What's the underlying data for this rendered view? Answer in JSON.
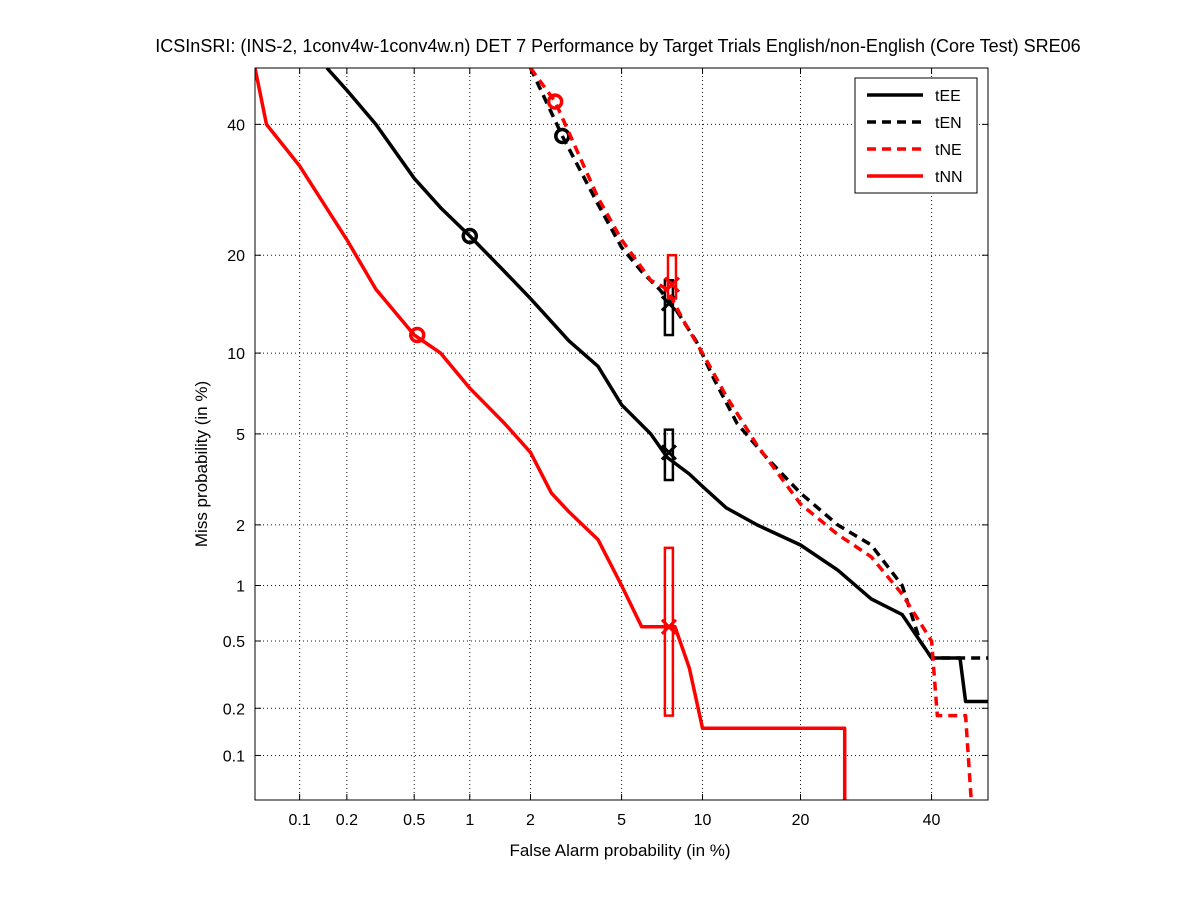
{
  "chart_data": {
    "type": "line",
    "title": "ICSInSRI: (INS-2, 1conv4w-1conv4w.n) DET 7 Performance by Target Trials English/non-English (Core Test) SRE06",
    "xlabel": "False Alarm probability (in %)",
    "ylabel": "Miss probability (in %)",
    "x_scale": "probit",
    "y_scale": "probit",
    "xlim": [
      0.05,
      50
    ],
    "ylim": [
      0.05,
      50
    ],
    "grid": true,
    "legend_position": "top-right",
    "xticks": [
      {
        "value": 0.1,
        "label": "0.1"
      },
      {
        "value": 0.2,
        "label": "0.2"
      },
      {
        "value": 0.5,
        "label": "0.5"
      },
      {
        "value": 1,
        "label": "1"
      },
      {
        "value": 2,
        "label": "2"
      },
      {
        "value": 5,
        "label": "5"
      },
      {
        "value": 10,
        "label": "10"
      },
      {
        "value": 20,
        "label": "20"
      },
      {
        "value": 40,
        "label": "40"
      }
    ],
    "yticks": [
      {
        "value": 0.1,
        "label": "0.1"
      },
      {
        "value": 0.2,
        "label": "0.2"
      },
      {
        "value": 0.5,
        "label": "0.5"
      },
      {
        "value": 1,
        "label": "1"
      },
      {
        "value": 2,
        "label": "2"
      },
      {
        "value": 5,
        "label": "5"
      },
      {
        "value": 10,
        "label": "10"
      },
      {
        "value": 20,
        "label": "20"
      },
      {
        "value": 40,
        "label": "40"
      }
    ],
    "series": [
      {
        "name": "tEE",
        "color": "#000000",
        "line_style": "solid",
        "points": [
          [
            0.15,
            50
          ],
          [
            0.2,
            46
          ],
          [
            0.3,
            40
          ],
          [
            0.5,
            31
          ],
          [
            0.7,
            26.5
          ],
          [
            1.0,
            22.5
          ],
          [
            1.5,
            18
          ],
          [
            2.0,
            15
          ],
          [
            3.0,
            11
          ],
          [
            4.0,
            9
          ],
          [
            5.0,
            6.5
          ],
          [
            6.5,
            5
          ],
          [
            7.5,
            4
          ],
          [
            9.0,
            3.4
          ],
          [
            10.0,
            3.0
          ],
          [
            12.0,
            2.4
          ],
          [
            15.0,
            2.0
          ],
          [
            20.0,
            1.6
          ],
          [
            25.0,
            1.2
          ],
          [
            30.0,
            0.85
          ],
          [
            35.0,
            0.7
          ],
          [
            40.0,
            0.4
          ],
          [
            45.0,
            0.4
          ],
          [
            46.0,
            0.22
          ],
          [
            50.0,
            0.22
          ]
        ],
        "min_dcf": [
          1.0,
          22.5
        ],
        "actual_dcf": [
          7.6,
          4.2
        ],
        "actual_dcf_interval": [
          3.2,
          5.2
        ]
      },
      {
        "name": "tEN",
        "color": "#000000",
        "line_style": "dashed",
        "points": [
          [
            2.0,
            50
          ],
          [
            2.8,
            38
          ],
          [
            4.0,
            27
          ],
          [
            5.0,
            21
          ],
          [
            6.0,
            18
          ],
          [
            7.0,
            16
          ],
          [
            8.0,
            14
          ],
          [
            9.5,
            11
          ],
          [
            11.0,
            8
          ],
          [
            13.0,
            5.5
          ],
          [
            16.0,
            4.0
          ],
          [
            20.0,
            2.8
          ],
          [
            25.0,
            2.0
          ],
          [
            30.0,
            1.6
          ],
          [
            35.0,
            1.0
          ],
          [
            38.0,
            0.5
          ],
          [
            40.0,
            0.4
          ],
          [
            50.0,
            0.4
          ]
        ],
        "min_dcf": [
          2.8,
          38
        ],
        "actual_dcf": [
          7.6,
          14.5
        ],
        "actual_dcf_interval": [
          11.5,
          17.0
        ]
      },
      {
        "name": "tNE",
        "color": "#ff0000",
        "line_style": "dashed",
        "points": [
          [
            2.0,
            50
          ],
          [
            2.6,
            44
          ],
          [
            4.0,
            28
          ],
          [
            5.0,
            22
          ],
          [
            6.5,
            17
          ],
          [
            7.5,
            16
          ],
          [
            8.5,
            13
          ],
          [
            10.0,
            10
          ],
          [
            12.0,
            7
          ],
          [
            15.0,
            4.5
          ],
          [
            20.0,
            2.5
          ],
          [
            25.0,
            1.8
          ],
          [
            30.0,
            1.4
          ],
          [
            35.0,
            0.9
          ],
          [
            40.0,
            0.5
          ],
          [
            41.0,
            0.18
          ],
          [
            46.0,
            0.18
          ],
          [
            47.0,
            0.05
          ]
        ],
        "min_dcf": [
          2.6,
          44
        ],
        "actual_dcf": [
          7.8,
          16.5
        ],
        "actual_dcf_interval": [
          15.0,
          20.0
        ]
      },
      {
        "name": "tNN",
        "color": "#ff0000",
        "line_style": "solid",
        "points": [
          [
            0.05,
            50
          ],
          [
            0.06,
            40
          ],
          [
            0.1,
            33
          ],
          [
            0.2,
            22
          ],
          [
            0.3,
            16
          ],
          [
            0.5,
            11.5
          ],
          [
            0.7,
            10
          ],
          [
            1.0,
            7.5
          ],
          [
            1.5,
            5.5
          ],
          [
            2.0,
            4.2
          ],
          [
            2.5,
            2.8
          ],
          [
            3.0,
            2.3
          ],
          [
            4.0,
            1.7
          ],
          [
            5.0,
            1.0
          ],
          [
            6.0,
            0.6
          ],
          [
            8.0,
            0.6
          ],
          [
            9.0,
            0.35
          ],
          [
            10.0,
            0.15
          ],
          [
            20.0,
            0.15
          ],
          [
            26.0,
            0.15
          ],
          [
            26.0,
            0.05
          ]
        ],
        "min_dcf": [
          0.52,
          11.5
        ],
        "actual_dcf": [
          7.6,
          0.6
        ],
        "actual_dcf_interval": [
          0.18,
          1.55
        ]
      }
    ]
  }
}
